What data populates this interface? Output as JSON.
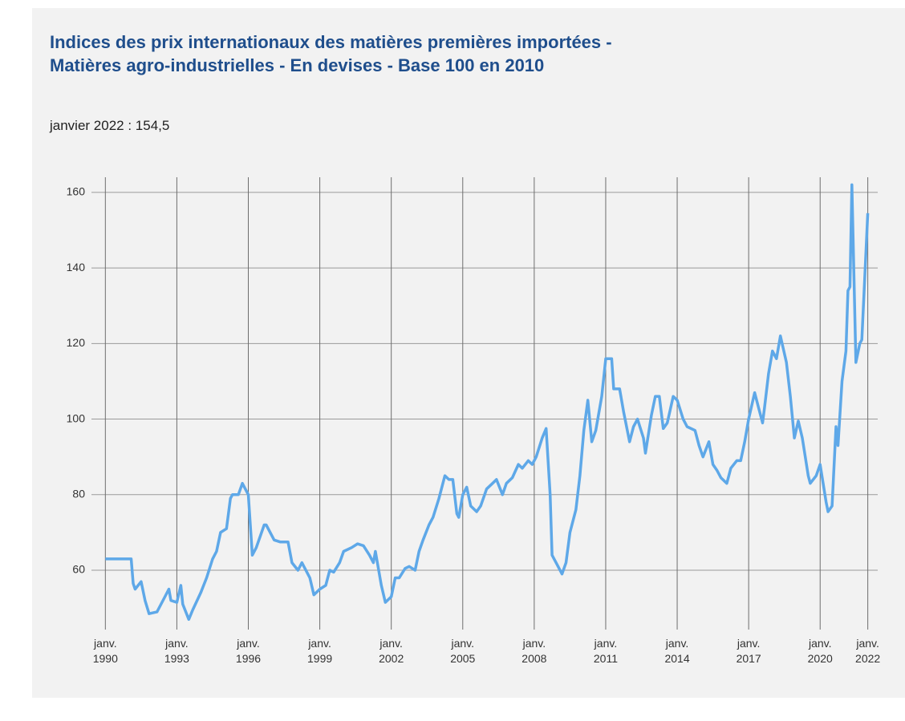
{
  "chart_data": {
    "type": "line",
    "title": "Indices des prix internationaux des matières premières importées - Matières agro-industrielles - En devises - Base 100 en 2010",
    "subtitle": "janvier 2022 : 154,5",
    "color": "#5ea8e8",
    "grid": true,
    "xlim": [
      "1989-06",
      "2022-06"
    ],
    "ylim": [
      46,
      164
    ],
    "yticks": [
      60,
      80,
      100,
      120,
      140,
      160
    ],
    "xticks": [
      {
        "value": "1990-01",
        "label": "janv. 1990"
      },
      {
        "value": "1993-01",
        "label": "janv. 1993"
      },
      {
        "value": "1996-01",
        "label": "janv. 1996"
      },
      {
        "value": "1999-01",
        "label": "janv. 1999"
      },
      {
        "value": "2002-01",
        "label": "janv. 2002"
      },
      {
        "value": "2005-01",
        "label": "janv. 2005"
      },
      {
        "value": "2008-01",
        "label": "janv. 2008"
      },
      {
        "value": "2011-01",
        "label": "janv. 2011"
      },
      {
        "value": "2014-01",
        "label": "janv. 2014"
      },
      {
        "value": "2017-01",
        "label": "janv. 2017"
      },
      {
        "value": "2020-01",
        "label": "janv. 2020"
      },
      {
        "value": "2022-01",
        "label": "janv. 2022"
      }
    ],
    "x": [
      "1990-01",
      "1991-02",
      "1991-03",
      "1991-04",
      "1991-07",
      "1991-09",
      "1991-11",
      "1992-03",
      "1992-07",
      "1992-09",
      "1992-10",
      "1993-01",
      "1993-03",
      "1993-04",
      "1993-07",
      "1993-09",
      "1994-01",
      "1994-04",
      "1994-07",
      "1994-09",
      "1994-11",
      "1995-02",
      "1995-04",
      "1995-05",
      "1995-08",
      "1995-10",
      "1996-01",
      "1996-02",
      "1996-03",
      "1996-05",
      "1996-09",
      "1996-10",
      "1997-02",
      "1997-05",
      "1997-09",
      "1997-11",
      "1998-02",
      "1998-04",
      "1998-08",
      "1998-10",
      "1999-01",
      "1999-04",
      "1999-06",
      "1999-08",
      "1999-11",
      "2000-01",
      "2000-05",
      "2000-08",
      "2000-11",
      "2001-02",
      "2001-04",
      "2001-05",
      "2001-08",
      "2001-10",
      "2002-01",
      "2002-03",
      "2002-05",
      "2002-08",
      "2002-10",
      "2003-01",
      "2003-03",
      "2003-05",
      "2003-08",
      "2003-10",
      "2004-01",
      "2004-04",
      "2004-06",
      "2004-08",
      "2004-10",
      "2004-11",
      "2005-01",
      "2005-03",
      "2005-05",
      "2005-08",
      "2005-10",
      "2006-01",
      "2006-04",
      "2006-06",
      "2006-09",
      "2006-11",
      "2007-02",
      "2007-05",
      "2007-07",
      "2007-10",
      "2007-12",
      "2008-02",
      "2008-05",
      "2008-07",
      "2008-09",
      "2008-10",
      "2009-01",
      "2009-03",
      "2009-05",
      "2009-07",
      "2009-10",
      "2009-12",
      "2010-02",
      "2010-04",
      "2010-06",
      "2010-08",
      "2010-11",
      "2011-01",
      "2011-04",
      "2011-05",
      "2011-08",
      "2011-10",
      "2012-01",
      "2012-03",
      "2012-05",
      "2012-08",
      "2012-09",
      "2012-12",
      "2013-02",
      "2013-04",
      "2013-06",
      "2013-08",
      "2013-11",
      "2014-01",
      "2014-04",
      "2014-06",
      "2014-10",
      "2014-12",
      "2015-02",
      "2015-05",
      "2015-07",
      "2015-09",
      "2015-11",
      "2016-02",
      "2016-04",
      "2016-07",
      "2016-09",
      "2016-11",
      "2017-01",
      "2017-04",
      "2017-06",
      "2017-08",
      "2017-09",
      "2017-11",
      "2018-01",
      "2018-03",
      "2018-05",
      "2018-08",
      "2018-10",
      "2018-12",
      "2019-02",
      "2019-04",
      "2019-07",
      "2019-08",
      "2019-11",
      "2020-01",
      "2020-04",
      "2020-05",
      "2020-07",
      "2020-09",
      "2020-10",
      "2020-12",
      "2021-02",
      "2021-03",
      "2021-04",
      "2021-05",
      "2021-07",
      "2021-09",
      "2021-10",
      "2022-01"
    ],
    "values": [
      63,
      63,
      56.5,
      55,
      57,
      52,
      48.5,
      49,
      53,
      55,
      52,
      51.5,
      56,
      51,
      47,
      49.5,
      54,
      58,
      63,
      65,
      70,
      71,
      79,
      80,
      80,
      83,
      80,
      72,
      64,
      66,
      72,
      72,
      68,
      67.5,
      67.5,
      62,
      60,
      62,
      58,
      53.5,
      55,
      56,
      60,
      59.5,
      62,
      65,
      66,
      67,
      66.5,
      64,
      62,
      65,
      56,
      51.5,
      53,
      58,
      58,
      60.5,
      61,
      60,
      65,
      68,
      72,
      74,
      79,
      85,
      84,
      84,
      75,
      74,
      80,
      82,
      77,
      75.5,
      77,
      81.5,
      83,
      84,
      80,
      83,
      84.5,
      88,
      87,
      89,
      88,
      90,
      95,
      97.5,
      80,
      64,
      61,
      59,
      62,
      70,
      76,
      85,
      97,
      105,
      94,
      97,
      106,
      116,
      116,
      108,
      108,
      102,
      94,
      98,
      100,
      95,
      91,
      101,
      106,
      106,
      97.5,
      99,
      106,
      105,
      100,
      98,
      97,
      93,
      90,
      94,
      88,
      86.5,
      84.5,
      83,
      87,
      89,
      89,
      94,
      100,
      107,
      103,
      99,
      103,
      112,
      118,
      116,
      122,
      115,
      106,
      95,
      99.5,
      95,
      85,
      83,
      85,
      88,
      78,
      75.5,
      77,
      98,
      93,
      110,
      118,
      134,
      135,
      162,
      115,
      120,
      121,
      154.5
    ]
  }
}
